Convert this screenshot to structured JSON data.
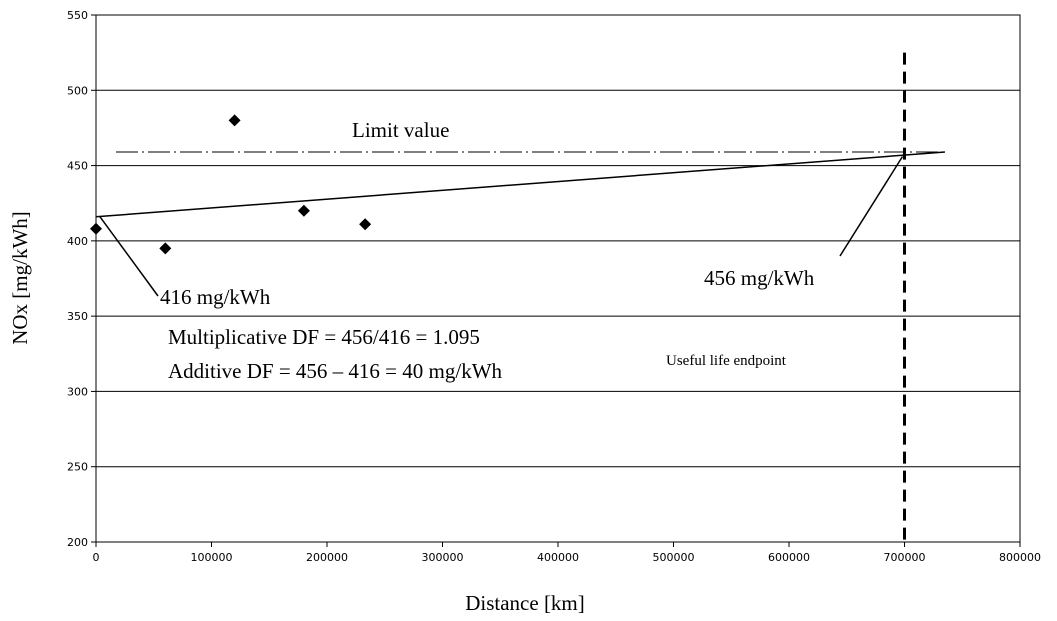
{
  "chart_data": {
    "type": "scatter",
    "title": "",
    "xlabel": "Distance [km]",
    "ylabel": "NOx [mg/kWh]",
    "xlim": [
      0,
      800000
    ],
    "ylim": [
      200,
      550
    ],
    "xticks": [
      0,
      100000,
      200000,
      300000,
      400000,
      500000,
      600000,
      700000,
      800000
    ],
    "yticks": [
      200,
      250,
      300,
      350,
      400,
      450,
      500,
      550
    ],
    "grid": "horizontal",
    "points": [
      {
        "x": 0,
        "y": 408
      },
      {
        "x": 60000,
        "y": 395
      },
      {
        "x": 120000,
        "y": 480
      },
      {
        "x": 180000,
        "y": 420
      },
      {
        "x": 233000,
        "y": 411
      }
    ],
    "trend_line": {
      "x": [
        0,
        735000
      ],
      "y": [
        416,
        459
      ]
    },
    "limit_value": {
      "label": "Limit value",
      "y": 459
    },
    "useful_life_endpoint": {
      "label": "Useful life endpoint",
      "x": 700000
    },
    "annotations": {
      "start_value": "416 mg/kWh",
      "end_value": "456 mg/kWh",
      "multiplicative_df": "Multiplicative DF = 456/416 = 1.095",
      "additive_df": "Additive DF = 456 – 416 = 40 mg/kWh"
    }
  }
}
